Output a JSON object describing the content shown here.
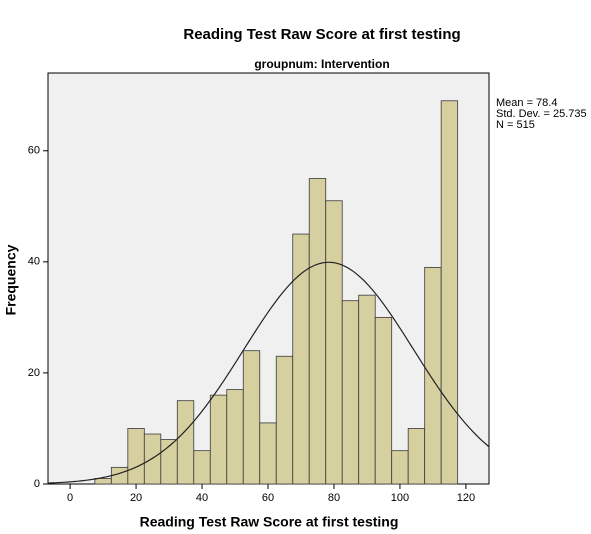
{
  "chart_data": {
    "type": "histogram",
    "title": "Reading Test Raw Score at first testing",
    "subtitle": "groupnum: Intervention",
    "x_label": "Reading Test Raw Score at first testing",
    "y_label": "Frequency",
    "bins": [
      7.5,
      12.5,
      17.5,
      22.5,
      27.5,
      32.5,
      37.5,
      42.5,
      47.5,
      52.5,
      57.5,
      62.5,
      67.5,
      72.5,
      77.5,
      82.5,
      87.5,
      92.5,
      97.5,
      102.5,
      107.5,
      112.5,
      117.5
    ],
    "values": [
      1,
      3,
      10,
      9,
      8,
      15,
      6,
      16,
      17,
      24,
      11,
      23,
      45,
      55,
      51,
      33,
      34,
      30,
      6,
      10,
      39,
      69
    ],
    "color": "#d6d0a0",
    "edge_color": "#3a3a3a",
    "plot_background": "#f0f0f0",
    "xlim": [
      -6.7,
      127
    ],
    "ylim": [
      0,
      74
    ],
    "xticks": [
      0,
      20,
      40,
      60,
      80,
      100,
      120
    ],
    "yticks": [
      0,
      20,
      40,
      60
    ],
    "grid": false,
    "normal_curve": true,
    "stats": {
      "mean": {
        "value": 78.4,
        "label": "Mean = 78.4"
      },
      "sd": {
        "value": 25.735,
        "label": "Std. Dev. = 25.735"
      },
      "n": {
        "value": 515,
        "label": "N = 515"
      }
    }
  }
}
